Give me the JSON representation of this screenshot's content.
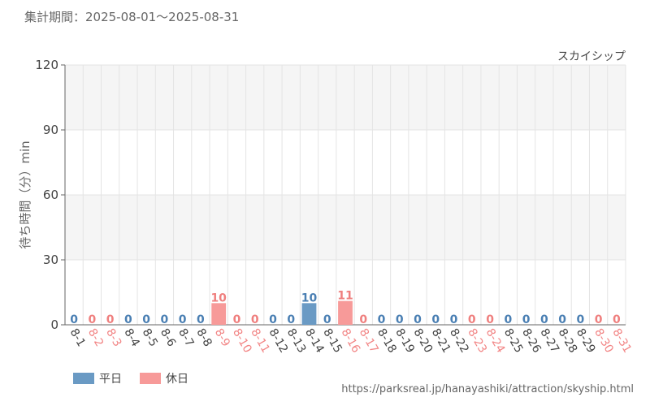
{
  "period_label": "集計期間：2025-08-01～2025-08-31",
  "source_url": "https://parksreal.jp/hanayashiki/attraction/skyship.html",
  "colors": {
    "weekday": "#6a9ac4",
    "holiday": "#f79a99",
    "grid": "#e4e4e4",
    "band": "#f5f5f5"
  },
  "legend": {
    "weekday": "平日",
    "holiday": "休日"
  },
  "chart_data": {
    "type": "bar",
    "title": "スカイシップ",
    "ylabel": "待ち時間（分）min",
    "xlabel": "",
    "ylim": [
      0,
      120
    ],
    "yticks": [
      0,
      30,
      60,
      90,
      120
    ],
    "categories": [
      "8-1",
      "8-2",
      "8-3",
      "8-4",
      "8-5",
      "8-6",
      "8-7",
      "8-8",
      "8-9",
      "8-10",
      "8-11",
      "8-12",
      "8-13",
      "8-14",
      "8-15",
      "8-16",
      "8-17",
      "8-18",
      "8-19",
      "8-20",
      "8-21",
      "8-22",
      "8-23",
      "8-24",
      "8-25",
      "8-26",
      "8-27",
      "8-28",
      "8-29",
      "8-30",
      "8-31"
    ],
    "day_type": [
      "weekday",
      "holiday",
      "holiday",
      "weekday",
      "weekday",
      "weekday",
      "weekday",
      "weekday",
      "holiday",
      "holiday",
      "holiday",
      "weekday",
      "weekday",
      "weekday",
      "weekday",
      "holiday",
      "holiday",
      "weekday",
      "weekday",
      "weekday",
      "weekday",
      "weekday",
      "holiday",
      "holiday",
      "weekday",
      "weekday",
      "weekday",
      "weekday",
      "weekday",
      "holiday",
      "holiday"
    ],
    "values": [
      0,
      0,
      0,
      0,
      0,
      0,
      0,
      0,
      10,
      0,
      0,
      0,
      0,
      10,
      0,
      11,
      0,
      0,
      0,
      0,
      0,
      0,
      0,
      0,
      0,
      0,
      0,
      0,
      0,
      0,
      0
    ]
  }
}
